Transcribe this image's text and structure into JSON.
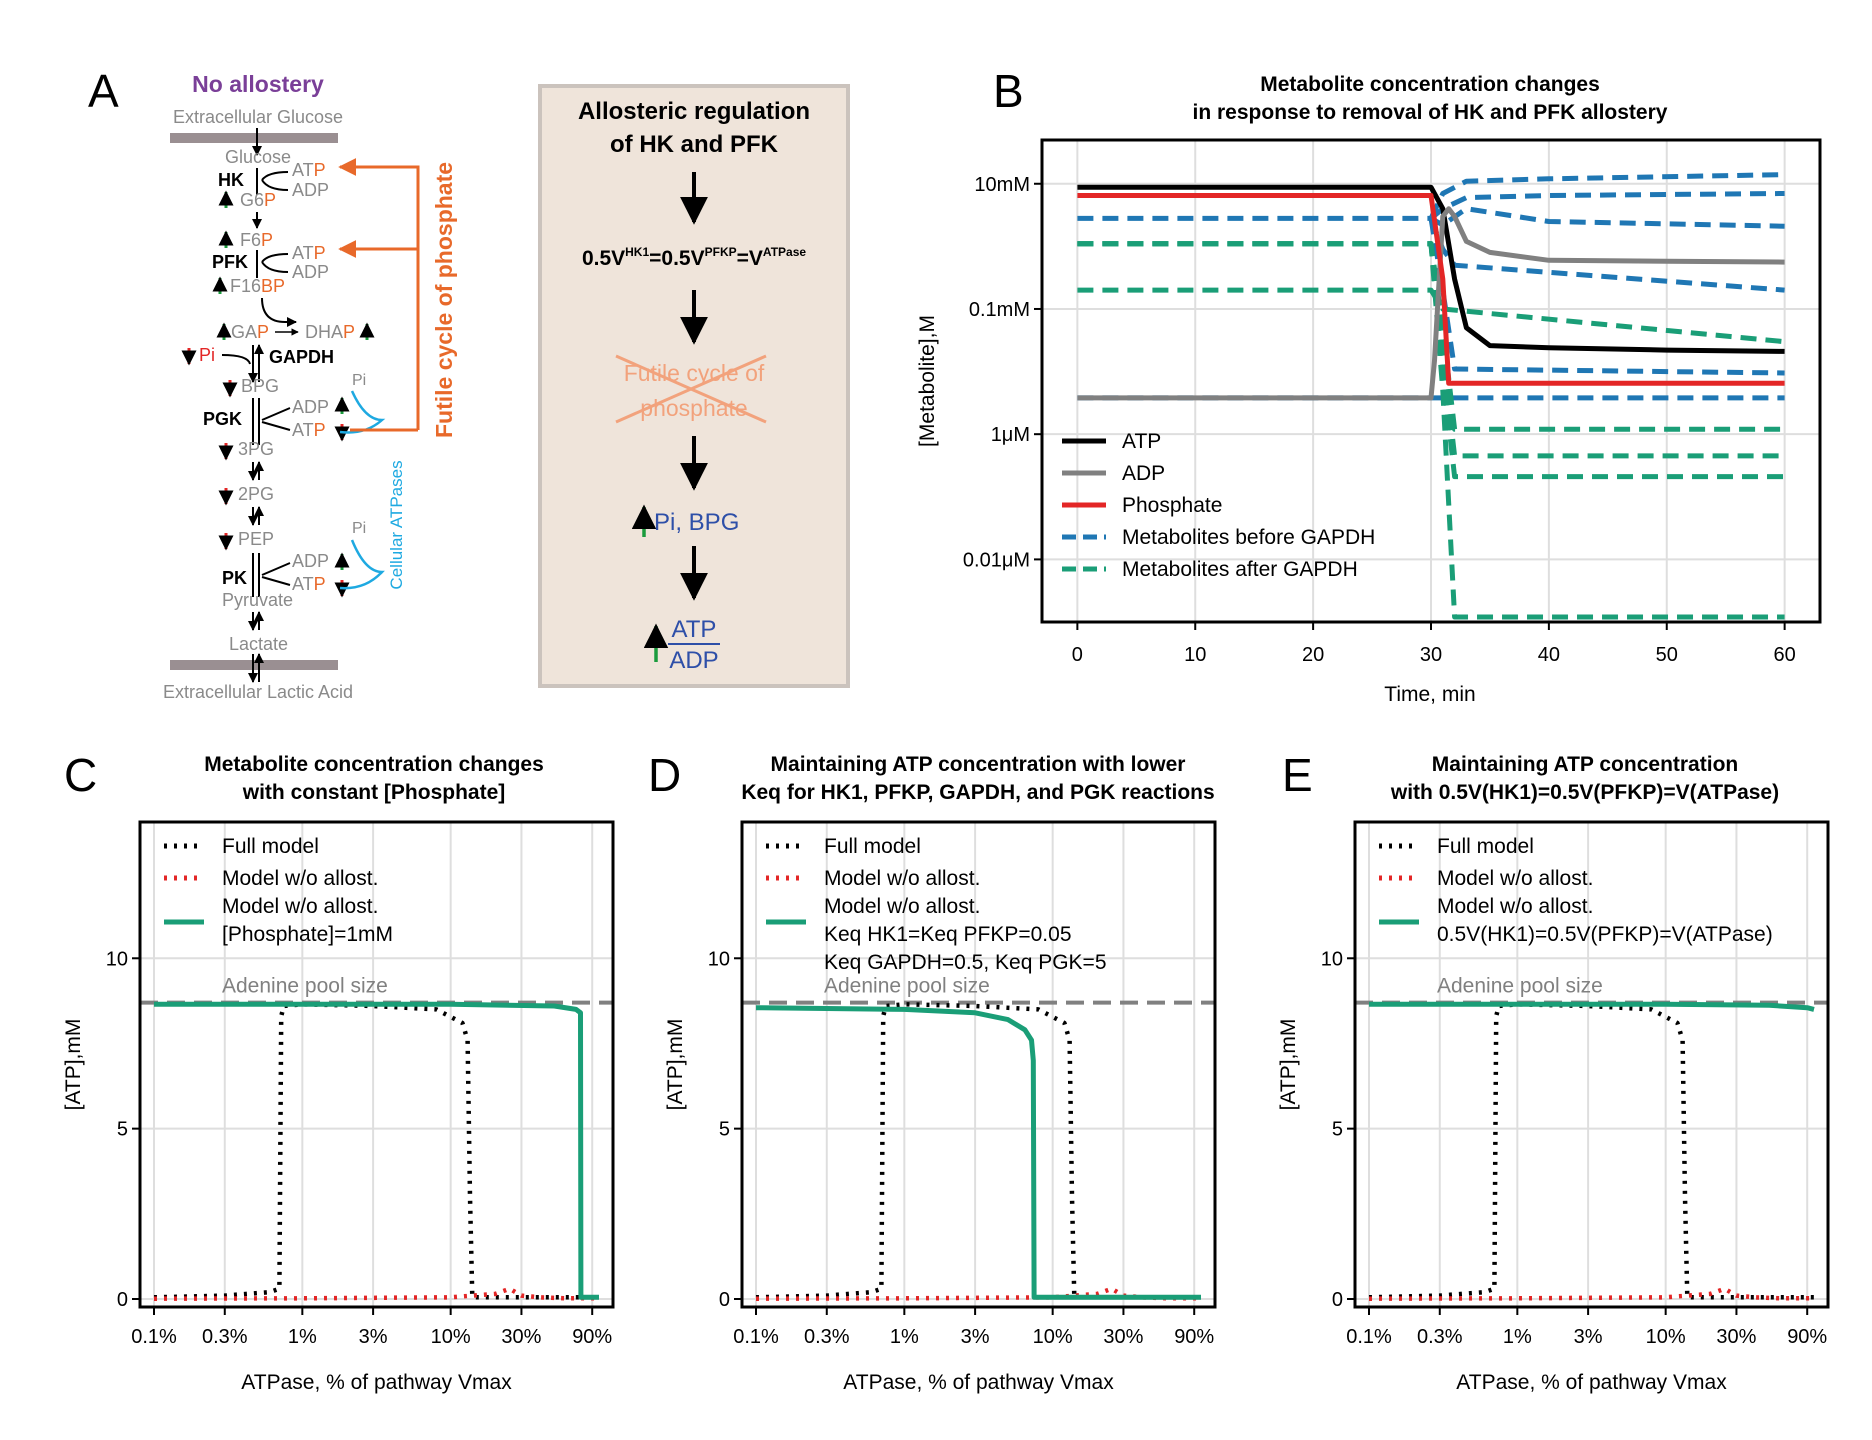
{
  "labels": {
    "A": "A",
    "B": "B",
    "C": "C",
    "D": "D",
    "E": "E"
  },
  "panelA": {
    "title": "No allostery",
    "extracellular_glucose": "Extracellular Glucose",
    "extracellular_lactic": "Extracellular Lactic Acid",
    "metabolites": {
      "glucose": "Glucose",
      "g6p": "G6",
      "f6p": "F6",
      "f16bp": "F16",
      "gap": "GA",
      "dhap": "DHA",
      "bpg": "BPG",
      "pg3": "3PG",
      "pg2": "2PG",
      "pep": "PEP",
      "pyruvate": "Pyruvate",
      "lactate": "Lactate",
      "p": "P",
      "bp": "BP"
    },
    "enzymes": {
      "hk": "HK",
      "pfk": "PFK",
      "gapdh": "GAPDH",
      "pgk": "PGK",
      "pk": "PK"
    },
    "cofactors": {
      "at": "AT",
      "atp": "ATP",
      "adp": "ADP",
      "pi": "Pi",
      "p": "P"
    },
    "futile": "Futile cycle of phosphate",
    "cellular": "Cellular ATPases",
    "colors": {
      "orange": "#e8692a",
      "blue": "#1ea9e1",
      "green": "#1a9b3c",
      "red": "#e32626",
      "purple": "#7a3f98"
    }
  },
  "flowbox": {
    "line1": "Allosteric regulation",
    "line2": "of HK and PFK",
    "eq_pre": "0.5V",
    "eq_hk": "HK1",
    "eq_mid": "=0.5V",
    "eq_pfk": "PFKP",
    "eq_v": "=V",
    "eq_atpase": "ATPase",
    "futile1": "Futile cycle of",
    "futile2": "phosphate",
    "result": "Pi, BPG",
    "ratio_num": "ATP",
    "ratio_den": "ADP",
    "bg": "#efe4da"
  },
  "chartB": {
    "title1": "Metabolite concentration changes",
    "title2": "in response to removal of HK and PFK allostery",
    "ylabel": "[Metabolite],M",
    "xlabel": "Time, min",
    "xticks": [
      "0",
      "10",
      "20",
      "30",
      "40",
      "50",
      "60"
    ],
    "yticks": [
      "10mM",
      "0.1mM",
      "1μM",
      "0.01μM"
    ],
    "legend": [
      "ATP",
      "ADP",
      "Phosphate",
      "Metabolites before GAPDH",
      "Metabolites after GAPDH"
    ]
  },
  "chart_data": [
    {
      "type": "line",
      "panel": "B",
      "title": "Metabolite concentration changes in response to removal of HK and PFK allostery",
      "xlabel": "Time, min",
      "ylabel": "[Metabolite],M",
      "xlim": [
        -3,
        63
      ],
      "yscale": "log",
      "ylim": [
        1e-09,
        0.05
      ],
      "yticks": [
        0.01,
        0.0001,
        1e-06,
        1e-08
      ],
      "grid": true,
      "legend": "lower-left",
      "series": [
        {
          "name": "ATP",
          "color": "#000000",
          "style": "solid",
          "x": [
            0,
            30,
            31,
            32,
            33,
            35,
            40,
            50,
            60
          ],
          "y": [
            0.0088,
            0.0088,
            0.004,
            0.0003,
            5e-05,
            2.6e-05,
            2.4e-05,
            2.2e-05,
            2.1e-05
          ]
        },
        {
          "name": "ADP",
          "color": "#808080",
          "style": "solid",
          "x": [
            0,
            30,
            30.3,
            31,
            31.5,
            32,
            33,
            35,
            40,
            50,
            60
          ],
          "y": [
            3.8e-06,
            3.8e-06,
            1.5e-05,
            0.003,
            0.004,
            0.003,
            0.0012,
            0.0008,
            0.0006,
            0.00058,
            0.00056
          ]
        },
        {
          "name": "Phosphate",
          "color": "#e32626",
          "style": "solid",
          "x": [
            0,
            30,
            31,
            31.5,
            60
          ],
          "y": [
            0.0065,
            0.0065,
            0.0003,
            6.5e-06,
            6.5e-06
          ]
        }
      ],
      "extra_series": [
        {
          "group": "Metabolites before GAPDH",
          "color": "#1f77b4",
          "style": "dashed",
          "x": [
            0,
            30,
            31,
            33,
            40,
            60
          ],
          "y": [
            0.0028,
            0.0028,
            0.0022,
            0.004,
            0.0025,
            0.0021
          ]
        },
        {
          "group": "Metabolites before GAPDH",
          "color": "#1f77b4",
          "style": "dashed",
          "x": [
            30,
            31,
            33,
            40,
            60
          ],
          "y": [
            0.0028,
            0.007,
            0.011,
            0.012,
            0.014
          ]
        },
        {
          "group": "Metabolites before GAPDH",
          "color": "#1f77b4",
          "style": "dashed",
          "x": [
            30,
            31,
            33,
            40,
            60
          ],
          "y": [
            0.0028,
            0.004,
            0.006,
            0.0065,
            0.007
          ]
        },
        {
          "group": "Metabolites before GAPDH",
          "color": "#1f77b4",
          "style": "dashed",
          "x": [
            30,
            31,
            32,
            60
          ],
          "y": [
            0.0028,
            0.0009,
            0.0005,
            0.0002
          ]
        },
        {
          "group": "Metabolites before GAPDH",
          "color": "#1f77b4",
          "style": "dashed",
          "x": [
            30,
            31,
            32,
            60
          ],
          "y": [
            0.0028,
            0.0002,
            1.1e-05,
            9.5e-06
          ]
        },
        {
          "group": "Metabolites before GAPDH",
          "color": "#1f77b4",
          "style": "dashed",
          "x": [
            0,
            30,
            31,
            60
          ],
          "y": [
            3.8e-06,
            3.8e-06,
            3.8e-06,
            3.8e-06
          ]
        },
        {
          "group": "Metabolites after GAPDH",
          "color": "#1a9e77",
          "style": "dashed",
          "x": [
            0,
            30,
            31,
            32,
            60
          ],
          "y": [
            0.0011,
            0.0011,
            5e-05,
            1.2e-06,
            1.2e-06
          ]
        },
        {
          "group": "Metabolites after GAPDH",
          "color": "#1a9e77",
          "style": "dashed",
          "x": [
            0,
            30,
            31,
            32,
            60
          ],
          "y": [
            0.0011,
            0.0011,
            2e-05,
            4.5e-07,
            4.5e-07
          ]
        },
        {
          "group": "Metabolites after GAPDH",
          "color": "#1a9e77",
          "style": "dashed",
          "x": [
            0,
            30,
            31,
            32,
            60
          ],
          "y": [
            0.0011,
            0.0011,
            1e-05,
            2.1e-07,
            2.1e-07
          ]
        },
        {
          "group": "Metabolites after GAPDH",
          "color": "#1a9e77",
          "style": "dashed",
          "x": [
            0,
            30,
            31,
            32,
            60
          ],
          "y": [
            0.0011,
            0.0011,
            5e-06,
            1.2e-09,
            1.2e-09
          ]
        },
        {
          "group": "Metabolites after GAPDH",
          "color": "#1a9e77",
          "style": "dashed",
          "x": [
            0,
            30,
            31,
            60
          ],
          "y": [
            0.0002,
            0.0002,
            0.0001,
            3e-05
          ]
        }
      ]
    },
    {
      "type": "line",
      "panel": "C",
      "title": "Metabolite concentration changes with constant [Phosphate]",
      "xlabel": "ATPase, % of pathway Vmax",
      "ylabel": "[ATP],mM",
      "xscale": "log",
      "xlim": [
        0.1,
        100
      ],
      "ylim": [
        0,
        14
      ],
      "xticks": [
        "0.1%",
        "0.3%",
        "1%",
        "3%",
        "10%",
        "30%",
        "90%"
      ],
      "yticks": [
        0,
        5,
        10
      ],
      "grid": true,
      "legend": "top-left",
      "reference": {
        "label": "Adenine pool size",
        "y": 8.7
      },
      "series": [
        {
          "name": "Full model",
          "color": "#000000",
          "style": "dotted",
          "x": [
            0.1,
            0.3,
            0.6,
            0.7,
            0.72,
            0.75,
            1,
            3,
            8,
            12,
            13,
            13.5,
            14,
            20,
            100
          ],
          "y": [
            0.05,
            0.1,
            0.2,
            0.3,
            8.3,
            8.6,
            8.65,
            8.6,
            8.5,
            8.1,
            7.6,
            3,
            0.05,
            0.05,
            0.05
          ]
        },
        {
          "name": "Model w/o allost.",
          "color": "#e32626",
          "style": "dotted",
          "x": [
            0.1,
            1,
            10,
            20,
            25,
            30,
            40,
            60,
            100
          ],
          "y": [
            0.01,
            0.02,
            0.05,
            0.15,
            0.3,
            0.1,
            0.05,
            0.02,
            0.02
          ]
        },
        {
          "name": "Model w/o allost. [Phosphate]=1mM",
          "color": "#1a9e77",
          "style": "solid",
          "x": [
            0.1,
            1,
            10,
            50,
            70,
            75,
            75.5,
            100
          ],
          "y": [
            8.65,
            8.65,
            8.65,
            8.6,
            8.5,
            8.4,
            0.05,
            0.05
          ]
        }
      ]
    },
    {
      "type": "line",
      "panel": "D",
      "title": "Maintaining ATP concentration with lower Keq for HK1, PFKP, GAPDH, and PGK reactions",
      "xlabel": "ATPase, % of pathway Vmax",
      "ylabel": "[ATP],mM",
      "xscale": "log",
      "xlim": [
        0.1,
        100
      ],
      "ylim": [
        0,
        14
      ],
      "xticks": [
        "0.1%",
        "0.3%",
        "1%",
        "3%",
        "10%",
        "30%",
        "90%"
      ],
      "yticks": [
        0,
        5,
        10
      ],
      "grid": true,
      "legend": "top-left",
      "reference": {
        "label": "Adenine pool size",
        "y": 8.7
      },
      "series": [
        {
          "name": "Full model",
          "color": "#000000",
          "style": "dotted",
          "x": [
            0.1,
            0.3,
            0.6,
            0.7,
            0.72,
            0.75,
            1,
            3,
            8,
            12,
            13,
            13.5,
            14,
            20,
            100
          ],
          "y": [
            0.05,
            0.1,
            0.2,
            0.3,
            8.3,
            8.6,
            8.65,
            8.6,
            8.5,
            8.1,
            7.6,
            3,
            0.05,
            0.05,
            0.05
          ]
        },
        {
          "name": "Model w/o allost.",
          "color": "#e32626",
          "style": "dotted",
          "x": [
            0.1,
            1,
            10,
            20,
            25,
            30,
            40,
            60,
            100
          ],
          "y": [
            0.01,
            0.02,
            0.05,
            0.15,
            0.3,
            0.1,
            0.05,
            0.02,
            0.02
          ]
        },
        {
          "name": "Model w/o allost. Keq HK1=Keq PFKP=0.05 Keq GAPDH=0.5, Keq PGK=5",
          "color": "#1a9e77",
          "style": "solid",
          "x": [
            0.1,
            1,
            3,
            5,
            6.5,
            7.2,
            7.4,
            7.5,
            10,
            100
          ],
          "y": [
            8.55,
            8.5,
            8.4,
            8.2,
            7.9,
            7.6,
            7.0,
            0.05,
            0.05,
            0.05
          ]
        }
      ]
    },
    {
      "type": "line",
      "panel": "E",
      "title": "Maintaining ATP concentration with 0.5V(HK1)=0.5V(PFKP)=V(ATPase)",
      "xlabel": "ATPase, % of pathway Vmax",
      "ylabel": "[ATP],mM",
      "xscale": "log",
      "xlim": [
        0.1,
        100
      ],
      "ylim": [
        0,
        14
      ],
      "xticks": [
        "0.1%",
        "0.3%",
        "1%",
        "3%",
        "10%",
        "30%",
        "90%"
      ],
      "yticks": [
        0,
        5,
        10
      ],
      "grid": true,
      "legend": "top-left",
      "reference": {
        "label": "Adenine pool size",
        "y": 8.7
      },
      "series": [
        {
          "name": "Full model",
          "color": "#000000",
          "style": "dotted",
          "x": [
            0.1,
            0.3,
            0.6,
            0.7,
            0.72,
            0.75,
            1,
            3,
            8,
            12,
            13,
            13.5,
            14,
            20,
            100
          ],
          "y": [
            0.05,
            0.1,
            0.2,
            0.3,
            8.3,
            8.6,
            8.65,
            8.6,
            8.5,
            8.1,
            7.6,
            3,
            0.05,
            0.05,
            0.05
          ]
        },
        {
          "name": "Model w/o allost.",
          "color": "#e32626",
          "style": "dotted",
          "x": [
            0.1,
            1,
            10,
            20,
            25,
            30,
            40,
            60,
            100
          ],
          "y": [
            0.01,
            0.02,
            0.05,
            0.15,
            0.3,
            0.1,
            0.05,
            0.02,
            0.02
          ]
        },
        {
          "name": "Model w/o allost. 0.5V(HK1)=0.5V(PFKP)=V(ATPase)",
          "color": "#1a9e77",
          "style": "solid",
          "x": [
            0.1,
            1,
            10,
            50,
            90,
            100
          ],
          "y": [
            8.65,
            8.65,
            8.65,
            8.62,
            8.55,
            8.5
          ]
        }
      ]
    }
  ],
  "bottom": {
    "C": {
      "title1": "Metabolite concentration changes",
      "title2": "with constant [Phosphate]",
      "legend": [
        "Full model",
        "Model w/o allost.",
        "Model w/o allost.",
        "[Phosphate]=1mM"
      ]
    },
    "D": {
      "title1": "Maintaining ATP concentration with lower",
      "title2": "Keq for HK1, PFKP, GAPDH, and PGK reactions",
      "legend": [
        "Full model",
        "Model w/o allost.",
        "Model w/o allost.",
        "Keq HK1=Keq PFKP=0.05",
        "Keq GAPDH=0.5, Keq PGK=5"
      ]
    },
    "E": {
      "title1": "Maintaining ATP concentration",
      "title2": "with 0.5V(HK1)=0.5V(PFKP)=V(ATPase)",
      "legend": [
        "Full model",
        "Model w/o allost.",
        "Model w/o allost.",
        "0.5V(HK1)=0.5V(PFKP)=V(ATPase)"
      ]
    },
    "ylabel": "[ATP],mM",
    "xlabel": "ATPase, % of pathway Vmax",
    "pool": "Adenine pool size",
    "yticks": [
      "0",
      "5",
      "10"
    ],
    "xticks": [
      "0.1%",
      "0.3%",
      "1%",
      "3%",
      "10%",
      "30%",
      "90%"
    ]
  }
}
